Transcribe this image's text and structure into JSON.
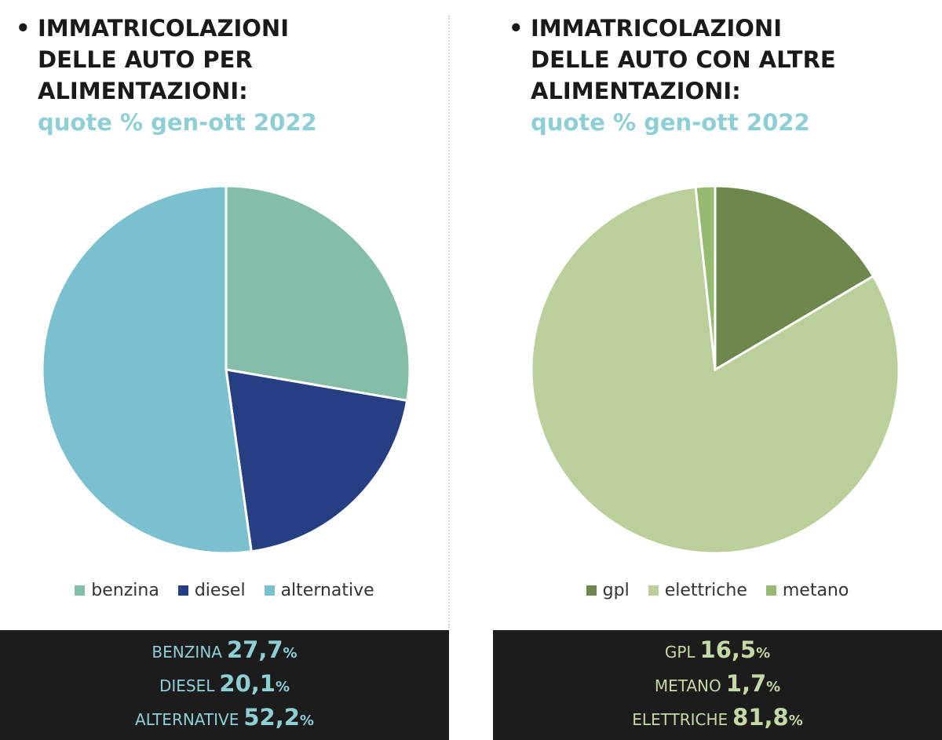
{
  "left": {
    "title_lines": [
      "IMMATRICOLAZIONI",
      "DELLE AUTO PER",
      "ALIMENTAZIONI:"
    ],
    "subtitle": "quote % gen-ott 2022",
    "footer": [
      {
        "label": "BENZINA",
        "value": "27,7",
        "unit": "%"
      },
      {
        "label": "DIESEL",
        "value": "20,1",
        "unit": "%"
      },
      {
        "label": "ALTERNATIVE",
        "value": "52,2",
        "unit": "%"
      }
    ]
  },
  "right": {
    "title_lines": [
      "IMMATRICOLAZIONI",
      "DELLE AUTO CON ALTRE",
      "ALIMENTAZIONI:"
    ],
    "subtitle": "quote % gen-ott 2022",
    "footer": [
      {
        "label": "GPL",
        "value": "16,5",
        "unit": "%"
      },
      {
        "label": "METANO",
        "value": "1,7",
        "unit": "%"
      },
      {
        "label": "ELETTRICHE",
        "value": "81,8",
        "unit": "%"
      }
    ]
  },
  "chart_data": [
    {
      "type": "pie",
      "title": "IMMATRICOLAZIONI DELLE AUTO PER ALIMENTAZIONI:",
      "subtitle": "quote % gen-ott 2022",
      "categories": [
        "benzina",
        "diesel",
        "alternative"
      ],
      "values": [
        27.7,
        20.1,
        52.2
      ],
      "colors": [
        "#85bea6",
        "#263f83",
        "#7bc0ce"
      ],
      "legend": "bottom"
    },
    {
      "type": "pie",
      "title": "IMMATRICOLAZIONI DELLE AUTO CON ALTRE ALIMENTAZIONI:",
      "subtitle": "quote % gen-ott 2022",
      "categories": [
        "gpl",
        "elettriche",
        "metano"
      ],
      "values": [
        16.5,
        81.8,
        1.7
      ],
      "colors": [
        "#6e874d",
        "#bbcf9a",
        "#96bb70"
      ],
      "legend": "bottom"
    }
  ]
}
